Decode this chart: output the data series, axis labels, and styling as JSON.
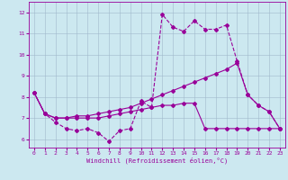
{
  "xlabel": "Windchill (Refroidissement éolien,°C)",
  "xlim": [
    -0.5,
    23.5
  ],
  "ylim": [
    5.6,
    12.5
  ],
  "yticks": [
    6,
    7,
    8,
    9,
    10,
    11,
    12
  ],
  "xticks": [
    0,
    1,
    2,
    3,
    4,
    5,
    6,
    7,
    8,
    9,
    10,
    11,
    12,
    13,
    14,
    15,
    16,
    17,
    18,
    19,
    20,
    21,
    22,
    23
  ],
  "background_color": "#cce8f0",
  "grid_color": "#a0b8cc",
  "line_color": "#990099",
  "line1_x": [
    0,
    1,
    2,
    3,
    4,
    5,
    6,
    7,
    8,
    9,
    10,
    11,
    12,
    13,
    14,
    15,
    16,
    17,
    18,
    19,
    20,
    21,
    22,
    23
  ],
  "line1_y": [
    8.2,
    7.2,
    6.8,
    6.5,
    6.4,
    6.5,
    6.3,
    5.9,
    6.4,
    6.5,
    7.8,
    7.5,
    11.9,
    11.3,
    11.1,
    11.6,
    11.2,
    11.2,
    11.4,
    9.7,
    8.1,
    7.6,
    7.3,
    6.5
  ],
  "line2_x": [
    0,
    1,
    2,
    3,
    4,
    5,
    6,
    7,
    8,
    9,
    10,
    11,
    12,
    13,
    14,
    15,
    16,
    17,
    18,
    19,
    20,
    21,
    22,
    23
  ],
  "line2_y": [
    8.2,
    7.2,
    7.0,
    7.0,
    7.1,
    7.1,
    7.2,
    7.3,
    7.4,
    7.5,
    7.7,
    7.9,
    8.1,
    8.3,
    8.5,
    8.7,
    8.9,
    9.1,
    9.3,
    9.6,
    8.1,
    7.6,
    7.3,
    6.5
  ],
  "line3_x": [
    0,
    1,
    2,
    3,
    4,
    5,
    6,
    7,
    8,
    9,
    10,
    11,
    12,
    13,
    14,
    15,
    16,
    17,
    18,
    19,
    20,
    21,
    22,
    23
  ],
  "line3_y": [
    8.2,
    7.2,
    7.0,
    7.0,
    7.0,
    7.0,
    7.0,
    7.1,
    7.2,
    7.3,
    7.4,
    7.5,
    7.6,
    7.6,
    7.7,
    7.7,
    6.5,
    6.5,
    6.5,
    6.5,
    6.5,
    6.5,
    6.5,
    6.5
  ]
}
